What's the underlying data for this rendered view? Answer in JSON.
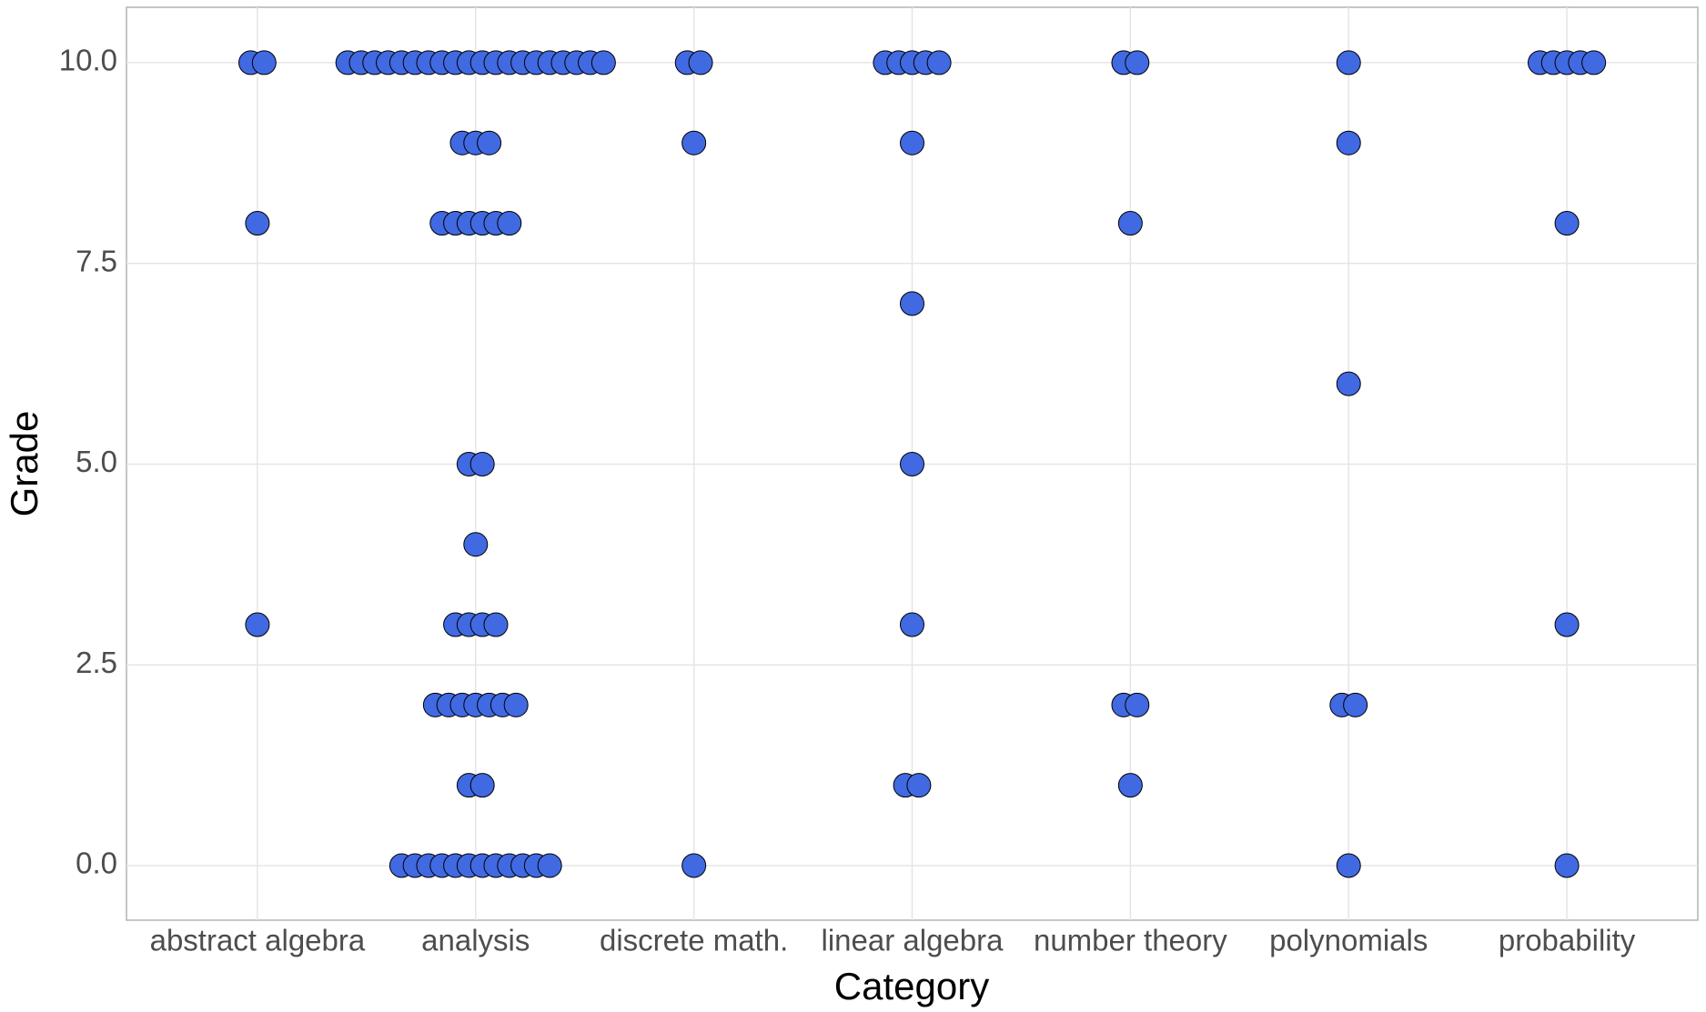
{
  "chart_data": {
    "type": "dotplot",
    "x_label": "Category",
    "y_label": "Grade",
    "categories": [
      "abstract algebra",
      "analysis",
      "discrete math.",
      "linear algebra",
      "number theory",
      "polynomials",
      "probability"
    ],
    "values": [
      [
        10,
        10,
        8,
        3
      ],
      [
        10,
        10,
        10,
        10,
        10,
        10,
        10,
        10,
        10,
        10,
        10,
        10,
        10,
        10,
        10,
        10,
        10,
        10,
        10,
        10,
        9,
        9,
        9,
        8,
        8,
        8,
        8,
        8,
        8,
        5,
        5,
        4,
        3,
        3,
        3,
        3,
        2,
        2,
        2,
        2,
        2,
        2,
        2,
        1,
        1,
        0,
        0,
        0,
        0,
        0,
        0,
        0,
        0,
        0,
        0,
        0,
        0
      ],
      [
        10,
        10,
        9,
        0
      ],
      [
        10,
        10,
        10,
        10,
        10,
        9,
        7,
        5,
        3,
        1,
        1
      ],
      [
        10,
        10,
        8,
        2,
        2,
        1
      ],
      [
        10,
        9,
        6,
        2,
        2,
        0
      ],
      [
        10,
        10,
        10,
        10,
        10,
        8,
        3,
        0
      ]
    ],
    "color": "#4169e1",
    "ylim": [
      -0.68,
      10.69
    ],
    "yticks": [
      {
        "value": 0,
        "label": "0.0"
      },
      2.5,
      {
        "value": 5,
        "label": "5.0"
      },
      7.5,
      {
        "value": 10,
        "label": "10.0"
      }
    ],
    "grid": true
  }
}
